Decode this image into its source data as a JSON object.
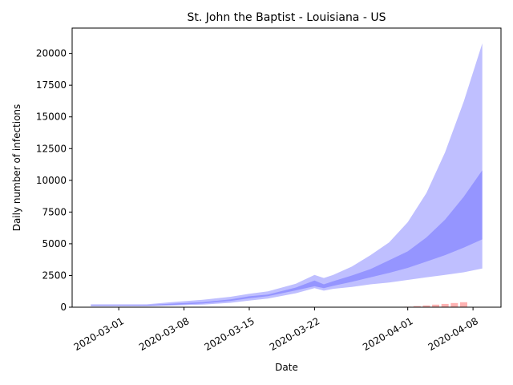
{
  "chart_data": {
    "type": "area",
    "title": "St. John the Baptist - Louisiana - US",
    "xlabel": "Date",
    "ylabel": "Daily number of infections",
    "x_start": "2020-02-27",
    "x_end": "2020-04-09",
    "xlim": [
      "2020-02-25",
      "2020-04-11"
    ],
    "ylim": [
      0,
      22000
    ],
    "x_ticks": [
      "2020-03-01",
      "2020-03-08",
      "2020-03-15",
      "2020-03-22",
      "2020-04-01",
      "2020-04-08"
    ],
    "y_ticks": [
      0,
      2500,
      5000,
      7500,
      10000,
      12500,
      15000,
      17500,
      20000
    ],
    "y_tick_labels": [
      "0",
      "2500",
      "5000",
      "7500",
      "10000",
      "12500",
      "15000",
      "17500",
      "20000"
    ],
    "grid": false,
    "colors": {
      "outer_band": "#0000ff",
      "inner_band": "#0000ff",
      "observed_bars": "#ff0000"
    },
    "series": [
      {
        "kind": "band",
        "x": [
          "2020-02-27",
          "2020-03-01",
          "2020-03-04",
          "2020-03-07",
          "2020-03-10",
          "2020-03-13",
          "2020-03-15",
          "2020-03-17",
          "2020-03-20",
          "2020-03-22",
          "2020-03-23",
          "2020-03-24",
          "2020-03-26",
          "2020-03-28",
          "2020-03-30",
          "2020-04-01",
          "2020-04-03",
          "2020-04-05",
          "2020-04-07",
          "2020-04-09"
        ],
        "lower": [
          80,
          80,
          80,
          130,
          200,
          350,
          520,
          680,
          1100,
          1500,
          1300,
          1450,
          1600,
          1800,
          1950,
          2150,
          2350,
          2550,
          2750,
          3050
        ],
        "upper": [
          230,
          230,
          230,
          420,
          580,
          820,
          1060,
          1250,
          1850,
          2550,
          2300,
          2550,
          3200,
          4100,
          5100,
          6700,
          9000,
          12200,
          16200,
          20800
        ]
      },
      {
        "kind": "band",
        "x": [
          "2020-02-27",
          "2020-03-01",
          "2020-03-04",
          "2020-03-07",
          "2020-03-10",
          "2020-03-13",
          "2020-03-15",
          "2020-03-17",
          "2020-03-20",
          "2020-03-22",
          "2020-03-23",
          "2020-03-24",
          "2020-03-26",
          "2020-03-28",
          "2020-03-30",
          "2020-04-01",
          "2020-04-03",
          "2020-04-05",
          "2020-04-07",
          "2020-04-09"
        ],
        "lower": [
          110,
          110,
          120,
          190,
          290,
          500,
          700,
          870,
          1330,
          1650,
          1500,
          1680,
          2000,
          2350,
          2700,
          3100,
          3600,
          4100,
          4700,
          5350
        ],
        "upper": [
          160,
          160,
          170,
          290,
          400,
          620,
          860,
          1000,
          1550,
          2100,
          1800,
          2050,
          2500,
          3000,
          3700,
          4400,
          5500,
          6900,
          8700,
          10800
        ]
      }
    ],
    "bars": {
      "x": [
        "2020-04-01",
        "2020-04-02",
        "2020-04-03",
        "2020-04-04",
        "2020-04-05",
        "2020-04-06",
        "2020-04-07"
      ],
      "values": [
        40,
        90,
        140,
        200,
        260,
        330,
        390
      ]
    }
  }
}
